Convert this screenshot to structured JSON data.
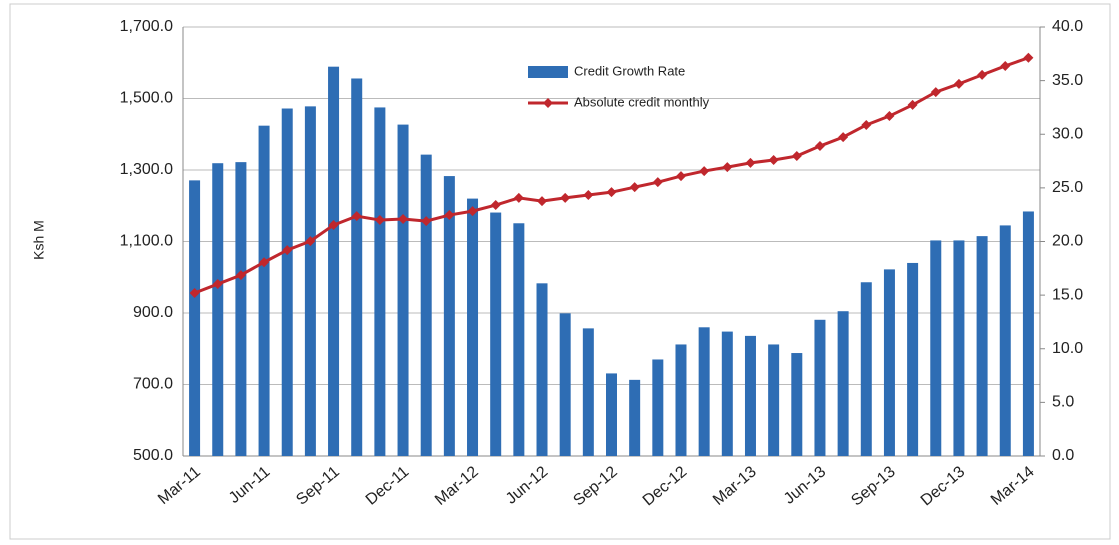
{
  "chart_data": {
    "type": "bar_line",
    "y_label": "Ksh M",
    "categories": [
      "Mar-11",
      null,
      null,
      "Jun-11",
      null,
      null,
      "Sep-11",
      null,
      null,
      "Dec-11",
      null,
      null,
      "Mar-12",
      null,
      null,
      "Jun-12",
      null,
      null,
      "Sep-12",
      null,
      null,
      "Dec-12",
      null,
      null,
      "Mar-13",
      null,
      null,
      "Jun-13",
      null,
      null,
      "Sep-13",
      null,
      null,
      "Dec-13",
      null,
      null,
      "Mar-14"
    ],
    "series": [
      {
        "name": "Credit Growth Rate",
        "type": "bar",
        "axis": "y2",
        "color": "#2e6db4",
        "values": [
          25.7,
          27.3,
          27.4,
          30.8,
          32.4,
          32.6,
          36.3,
          35.2,
          32.5,
          30.9,
          28.1,
          26.1,
          24.0,
          22.7,
          21.7,
          16.1,
          13.3,
          11.9,
          7.7,
          7.1,
          9.0,
          10.4,
          12.0,
          11.6,
          11.2,
          10.4,
          9.6,
          12.7,
          13.5,
          16.2,
          17.4,
          18.0,
          20.1,
          20.1,
          20.5,
          21.5,
          22.8
        ]
      },
      {
        "name": "Absolute credit monthly",
        "type": "line",
        "axis": "y",
        "color": "#c0272d",
        "values": [
          956,
          981,
          1006,
          1042,
          1076,
          1101,
          1146,
          1171,
          1160,
          1163,
          1157,
          1174,
          1185,
          1202,
          1222,
          1213,
          1222,
          1230,
          1238,
          1252,
          1266,
          1283,
          1297,
          1308,
          1320,
          1328,
          1339,
          1367,
          1392,
          1426,
          1451,
          1482,
          1518,
          1541,
          1566,
          1591,
          1614
        ]
      }
    ],
    "ylim": [
      500,
      1700
    ],
    "yticks": [
      {
        "value": 500,
        "label": "500.0"
      },
      {
        "value": 700,
        "label": "700.0"
      },
      {
        "value": 900,
        "label": "900.0"
      },
      {
        "value": 1100,
        "label": "1,100.0"
      },
      {
        "value": 1300,
        "label": "1,300.0"
      },
      {
        "value": 1500,
        "label": "1,500.0"
      },
      {
        "value": 1700,
        "label": "1,700.0"
      }
    ],
    "y2lim": [
      0,
      40
    ],
    "y2ticks": [
      {
        "value": 0,
        "label": "0.0"
      },
      {
        "value": 5,
        "label": "5.0"
      },
      {
        "value": 10,
        "label": "10.0"
      },
      {
        "value": 15,
        "label": "15.0"
      },
      {
        "value": 20,
        "label": "20.0"
      },
      {
        "value": 25,
        "label": "25.0"
      },
      {
        "value": 30,
        "label": "30.0"
      },
      {
        "value": 35,
        "label": "35.0"
      },
      {
        "value": 40,
        "label": "40.0"
      }
    ],
    "grid": true
  }
}
